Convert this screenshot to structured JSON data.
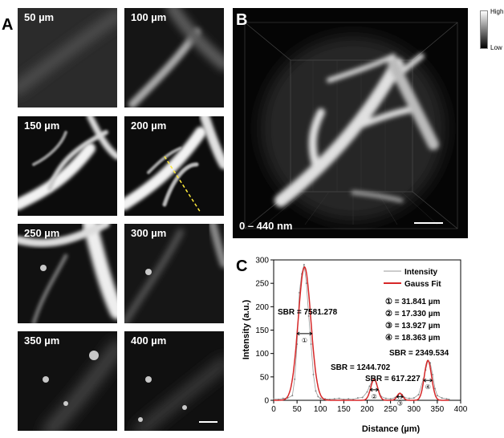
{
  "panel_a": {
    "letter": "A",
    "tiles": [
      {
        "label": "50 µm"
      },
      {
        "label": "100 µm"
      },
      {
        "label": "150 µm"
      },
      {
        "label": "200 µm"
      },
      {
        "label": "250 µm"
      },
      {
        "label": "300 µm"
      },
      {
        "label": "350 µm"
      },
      {
        "label": "400 µm"
      }
    ]
  },
  "panel_b": {
    "letter": "B",
    "range_label": "0 – 440 nm",
    "colorbar": {
      "high": "High",
      "low": "Low"
    }
  },
  "panel_c": {
    "letter": "C",
    "legend": {
      "intensity": "Intensity",
      "gauss": "Gauss Fit"
    },
    "widths": [
      "① = 31.841 µm",
      "② = 17.330 µm",
      "③ = 13.927 µm",
      "④ = 18.363 µm"
    ],
    "sbr": [
      "SBR = 7581.278",
      "SBR = 1244.702",
      "SBR = 617.227",
      "SBR = 2349.534"
    ]
  },
  "chart_data": {
    "type": "line",
    "xlabel": "Distance (µm)",
    "ylabel": "Intensity (a.u.)",
    "xlim": [
      0,
      400
    ],
    "ylim": [
      0,
      300
    ],
    "xticks": [
      0,
      50,
      100,
      150,
      200,
      250,
      300,
      350,
      400
    ],
    "yticks": [
      0,
      50,
      100,
      150,
      200,
      250,
      300
    ],
    "series": [
      {
        "name": "Intensity",
        "color": "#999999",
        "x": [
          0,
          10,
          20,
          30,
          40,
          45,
          50,
          55,
          60,
          65,
          70,
          75,
          80,
          85,
          90,
          95,
          100,
          110,
          120,
          130,
          140,
          150,
          160,
          170,
          180,
          190,
          200,
          205,
          210,
          215,
          220,
          225,
          230,
          240,
          250,
          260,
          265,
          270,
          275,
          280,
          290,
          300,
          310,
          320,
          325,
          330,
          335,
          340,
          345,
          350,
          360,
          370,
          375
        ],
        "y": [
          3,
          2,
          4,
          5,
          10,
          45,
          120,
          230,
          270,
          290,
          250,
          180,
          120,
          55,
          20,
          8,
          4,
          3,
          2,
          3,
          4,
          2,
          3,
          2,
          5,
          6,
          18,
          30,
          40,
          45,
          35,
          20,
          8,
          4,
          3,
          6,
          10,
          15,
          12,
          6,
          4,
          5,
          12,
          45,
          65,
          85,
          80,
          55,
          25,
          10,
          5,
          3,
          2
        ]
      },
      {
        "name": "Gauss Fit",
        "color": "#d62728",
        "peaks": [
          {
            "center": 66,
            "amp": 285,
            "fwhm": 31.841
          },
          {
            "center": 215,
            "amp": 45,
            "fwhm": 17.33
          },
          {
            "center": 270,
            "amp": 15,
            "fwhm": 13.927
          },
          {
            "center": 330,
            "amp": 85,
            "fwhm": 18.363
          }
        ]
      }
    ],
    "peak_markers": [
      "①",
      "②",
      "③",
      "④"
    ]
  }
}
